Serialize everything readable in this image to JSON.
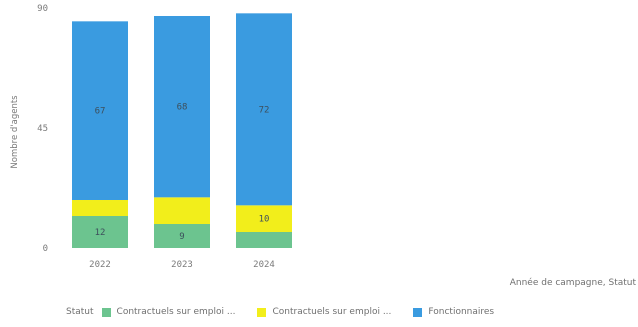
{
  "chart_data": {
    "type": "bar",
    "stacked": true,
    "categories": [
      "2022",
      "2023",
      "2024"
    ],
    "series": [
      {
        "name": "Contractuels sur emploi ...",
        "color": "#6cc48f",
        "values": [
          12,
          9,
          6
        ],
        "labels": [
          "12",
          "9",
          ""
        ]
      },
      {
        "name": "Contractuels sur emploi ...",
        "color": "#f2ee1b",
        "values": [
          6,
          10,
          10
        ],
        "labels": [
          "",
          "",
          "10"
        ]
      },
      {
        "name": "Fonctionnaires",
        "color": "#3a9be0",
        "values": [
          67,
          68,
          72
        ],
        "labels": [
          "67",
          "68",
          "72"
        ]
      }
    ],
    "ylabel": "Nombre d'agents",
    "xlabel": "Année de campagne, Statut",
    "ylim": [
      0,
      90
    ],
    "yticks": [
      "0",
      "45",
      "90"
    ],
    "legend_title": "Statut",
    "legend_position": "bottom",
    "grid": false
  }
}
